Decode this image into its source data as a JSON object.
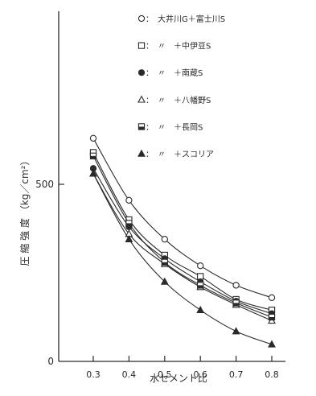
{
  "chart_data": {
    "type": "line",
    "title": "",
    "xlabel": "水セメント比",
    "ylabel": "圧 縮 強 度 （kg／cm²）",
    "x": [
      0.3,
      0.4,
      0.5,
      0.6,
      0.7,
      0.8
    ],
    "x_tick_labels": [
      "0.3",
      "0.4",
      "0.5",
      "0.6",
      "0.7",
      "0.8"
    ],
    "xlim": [
      0.3,
      0.8
    ],
    "y_ticks": [
      0,
      500
    ],
    "y_tick_labels": [
      "0",
      "500"
    ],
    "ylim": [
      0,
      1000
    ],
    "grid": false,
    "legend_position": "top-right",
    "series": [
      {
        "name": "大井川G＋富士川S",
        "marker": "circle-open",
        "values": [
          630,
          455,
          345,
          270,
          215,
          180
        ]
      },
      {
        "name": "〃　＋中伊豆S",
        "marker": "square-open",
        "values": [
          590,
          400,
          300,
          240,
          175,
          145
        ]
      },
      {
        "name": "〃　＋南蔵S",
        "marker": "circle-filled",
        "values": [
          545,
          380,
          290,
          225,
          170,
          135
        ]
      },
      {
        "name": "〃　＋八幡野S",
        "marker": "triangle-open",
        "values": [
          530,
          360,
          275,
          210,
          160,
          115
        ]
      },
      {
        "name": "〃　＋長岡S",
        "marker": "square-half",
        "values": [
          580,
          390,
          280,
          215,
          165,
          125
        ]
      },
      {
        "name": "〃　＋スコリア",
        "marker": "triangle-filled",
        "values": [
          530,
          345,
          225,
          145,
          85,
          48
        ]
      }
    ]
  }
}
